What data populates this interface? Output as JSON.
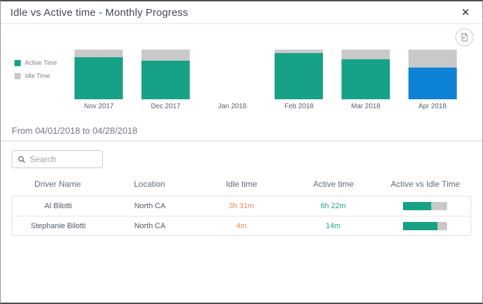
{
  "modal": {
    "title": "Idle vs Active time - Monthly Progress",
    "close_glyph": "✕"
  },
  "toolbar": {
    "export_button": "export-chart"
  },
  "colors": {
    "active_teal": "#17a287",
    "selected_blue": "#0d82d6",
    "idle_gray": "#c9c9c9",
    "idle_text_orange": "#e0895c",
    "active_text_teal": "#27a08e"
  },
  "chart_data": {
    "type": "bar",
    "stacked": true,
    "unit": "percent of month total",
    "categories": [
      "Nov 2017",
      "Dec 2017",
      "Jan 2018",
      "Feb 2018",
      "Mar 2018",
      "Apr 2018"
    ],
    "series": [
      {
        "name": "Active Time",
        "color": "#17a287",
        "values": [
          85,
          78,
          0,
          93,
          80,
          64
        ]
      },
      {
        "name": "Idle Time",
        "color": "#c9c9c9",
        "values": [
          15,
          22,
          0,
          7,
          20,
          36
        ]
      }
    ],
    "highlight": {
      "category": "Apr 2018",
      "series": "Active Time",
      "color": "#0d82d6",
      "reason": "selected month"
    },
    "legend_position": "left",
    "grid": false,
    "ylim": [
      0,
      100
    ]
  },
  "period": {
    "label": "From 04/01/2018 to 04/28/2018"
  },
  "search": {
    "placeholder": "Search"
  },
  "table": {
    "columns": [
      "Driver Name",
      "Location",
      "Idle time",
      "Active time",
      "Active vs Idle Time"
    ],
    "rows": [
      {
        "driver": "Al Bilotti",
        "location": "North CA",
        "idle": "3h 31m",
        "active": "6h 22m",
        "active_pct": 64
      },
      {
        "driver": "Stephanie Bilotti",
        "location": "North CA",
        "idle": "4m",
        "active": "14m",
        "active_pct": 78
      }
    ]
  }
}
